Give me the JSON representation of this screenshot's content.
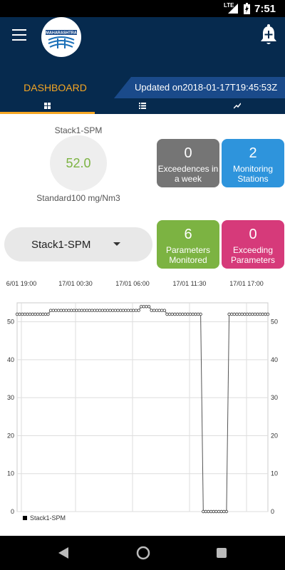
{
  "status_bar": {
    "network": "LTE",
    "time": "7:51"
  },
  "app": {
    "logo_text": "MAHARASHTRA"
  },
  "header": {
    "dashboard_label": "DASHBOARD",
    "updated_text": "Updated on2018-01-17T19:45:53Z"
  },
  "tabs": [
    {
      "icon": "grid-icon",
      "active": true
    },
    {
      "icon": "list-icon",
      "active": false
    },
    {
      "icon": "trend-icon",
      "active": false
    }
  ],
  "reading": {
    "stack_name": "Stack1-SPM",
    "value": "52.0",
    "standard": "Standard100 mg/Nm3"
  },
  "cards": {
    "exceedences": {
      "count": "0",
      "label_line1": "Exceedences in",
      "label_line2": "a week"
    },
    "stations": {
      "count": "2",
      "label_line1": "Monitoring",
      "label_line2": "Stations"
    },
    "parameters": {
      "count": "6",
      "label_line1": "Parameters",
      "label_line2": "Monitored"
    },
    "exceeding": {
      "count": "0",
      "label_line1": "Exceeding",
      "label_line2": "Parameters"
    }
  },
  "dropdown": {
    "selected": "Stack1-SPM"
  },
  "chart_data": {
    "type": "line",
    "x_tick_labels": [
      "6/01 19:00",
      "17/01 00:30",
      "17/01 06:00",
      "17/01 11:30",
      "17/01 17:00"
    ],
    "y_ticks": [
      0,
      10,
      20,
      30,
      40,
      50
    ],
    "ylim": [
      0,
      55
    ],
    "grid": true,
    "legend_position": "bottom-left",
    "series": [
      {
        "name": "Stack1-SPM",
        "values": [
          52,
          52,
          52,
          52,
          52,
          52,
          52,
          52,
          52,
          52,
          52,
          52,
          52,
          53,
          53,
          53,
          53,
          53,
          53,
          53,
          53,
          53,
          53,
          53,
          53,
          53,
          53,
          53,
          53,
          53,
          53,
          53,
          53,
          53,
          53,
          53,
          53,
          53,
          53,
          53,
          53,
          53,
          53,
          53,
          53,
          53,
          53,
          53,
          54,
          54,
          54,
          54,
          53,
          53,
          53,
          53,
          53,
          53,
          52,
          52,
          52,
          52,
          52,
          52,
          52,
          52,
          52,
          52,
          52,
          52,
          52,
          52,
          0,
          0,
          0,
          0,
          0,
          0,
          0,
          0,
          0,
          0,
          52,
          52,
          52,
          52,
          52,
          52,
          52,
          52,
          52,
          52,
          52,
          52,
          52,
          52,
          52,
          52
        ]
      }
    ]
  }
}
